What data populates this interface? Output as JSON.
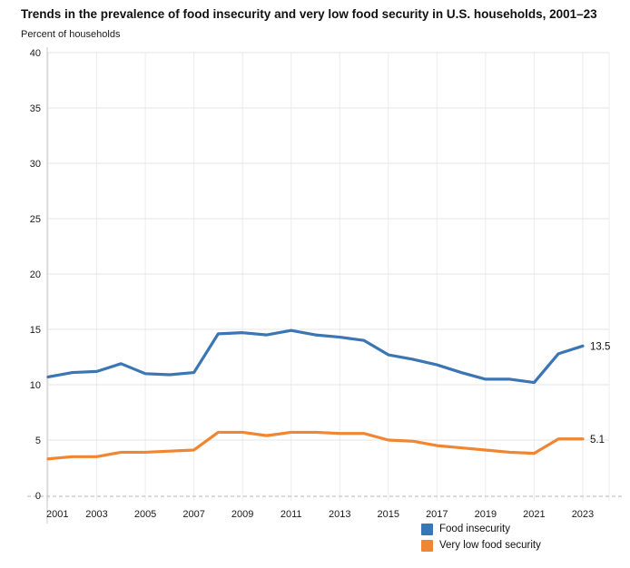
{
  "header": {
    "title": "Trends in the prevalence of food insecurity and very low food security in U.S. households, 2001–23",
    "unit_label": "Percent of households"
  },
  "chart_data": {
    "type": "line",
    "title": "Trends in the prevalence of food insecurity and very low food security in U.S. households, 2001–23",
    "ylabel": "Percent of households",
    "xlabel": "",
    "x": [
      2001,
      2002,
      2003,
      2004,
      2005,
      2006,
      2007,
      2008,
      2009,
      2010,
      2011,
      2012,
      2013,
      2014,
      2015,
      2016,
      2017,
      2018,
      2019,
      2020,
      2021,
      2022,
      2023
    ],
    "series": [
      {
        "name": "Food insecurity",
        "color": "#3b76b4",
        "end_label": "13.5",
        "values": [
          10.7,
          11.1,
          11.2,
          11.9,
          11.0,
          10.9,
          11.1,
          14.6,
          14.7,
          14.5,
          14.9,
          14.5,
          14.3,
          14.0,
          12.7,
          12.3,
          11.8,
          11.1,
          10.5,
          10.5,
          10.2,
          12.8,
          13.5
        ]
      },
      {
        "name": "Very low food security",
        "color": "#ef8633",
        "end_label": "5.1",
        "values": [
          3.3,
          3.5,
          3.5,
          3.9,
          3.9,
          4.0,
          4.1,
          5.7,
          5.7,
          5.4,
          5.7,
          5.7,
          5.6,
          5.6,
          5.0,
          4.9,
          4.5,
          4.3,
          4.1,
          3.9,
          3.8,
          5.1,
          5.1
        ]
      }
    ],
    "ylim": [
      0,
      40
    ],
    "yticks": [
      0,
      5,
      10,
      15,
      20,
      25,
      30,
      35,
      40
    ],
    "xtick_years": [
      2001,
      2003,
      2005,
      2007,
      2009,
      2011,
      2013,
      2015,
      2017,
      2019,
      2021,
      2023
    ],
    "grid": true,
    "zero_line_dashed": true,
    "legend_position": "bottom-right"
  },
  "legend": {
    "items": [
      {
        "label": "Food insecurity",
        "color": "#3b76b4"
      },
      {
        "label": "Very low food security",
        "color": "#ef8633"
      }
    ]
  }
}
